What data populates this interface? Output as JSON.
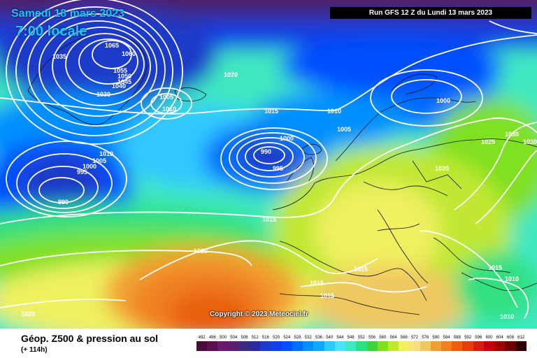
{
  "header": {
    "date": "Samedi 18 mars 2023",
    "time": "7:00 locale",
    "run": "Run GFS 12 Z du Lundi 13 mars 2023"
  },
  "copyright": "Copyright © 2023 Meteociel.fr",
  "footer": {
    "title": "Géop. Z500 & pression au sol",
    "subtitle": "(+ 114h)"
  },
  "legend": {
    "values": [
      "492",
      "496",
      "500",
      "504",
      "508",
      "512",
      "516",
      "520",
      "524",
      "528",
      "532",
      "536",
      "540",
      "544",
      "548",
      "552",
      "556",
      "560",
      "564",
      "568",
      "572",
      "576",
      "580",
      "584",
      "588",
      "592",
      "596",
      "600",
      "604",
      "608",
      "612"
    ],
    "colors": [
      "#4a0a3c",
      "#5c0f4e",
      "#6a1a6a",
      "#58206e",
      "#3a2a80",
      "#2a2aa0",
      "#1e3ac8",
      "#1040e6",
      "#0050ff",
      "#0070ff",
      "#0090ff",
      "#10a8ff",
      "#30c8ff",
      "#50e0ff",
      "#40e8c0",
      "#30e080",
      "#40d040",
      "#80e020",
      "#c0e830",
      "#f0f060",
      "#f8e080",
      "#f0c860",
      "#f0a030",
      "#f08020",
      "#e86010",
      "#e04010",
      "#d02010",
      "#c00010",
      "#a00000",
      "#700000",
      "#300000"
    ]
  },
  "isobar_labels": [
    {
      "text": "1065"
    },
    {
      "text": "1060"
    },
    {
      "text": "1055"
    },
    {
      "text": "1050"
    },
    {
      "text": "1045"
    },
    {
      "text": "1040"
    },
    {
      "text": "1035"
    },
    {
      "text": "1030"
    },
    {
      "text": "1020"
    },
    {
      "text": "1005"
    },
    {
      "text": "1010"
    },
    {
      "text": "1015"
    },
    {
      "text": "1010"
    },
    {
      "text": "1005"
    },
    {
      "text": "1000"
    },
    {
      "text": "990"
    },
    {
      "text": "995"
    },
    {
      "text": "1000"
    },
    {
      "text": "1010"
    },
    {
      "text": "1005"
    },
    {
      "text": "1000"
    },
    {
      "text": "995"
    },
    {
      "text": "990"
    },
    {
      "text": "1015"
    },
    {
      "text": "1020"
    },
    {
      "text": "1020"
    },
    {
      "text": "1015"
    },
    {
      "text": "1015"
    },
    {
      "text": "1015"
    },
    {
      "text": "1015"
    },
    {
      "text": "1010"
    },
    {
      "text": "1010"
    },
    {
      "text": "1030"
    },
    {
      "text": "1025"
    },
    {
      "text": "1030"
    },
    {
      "text": "1020"
    }
  ]
}
